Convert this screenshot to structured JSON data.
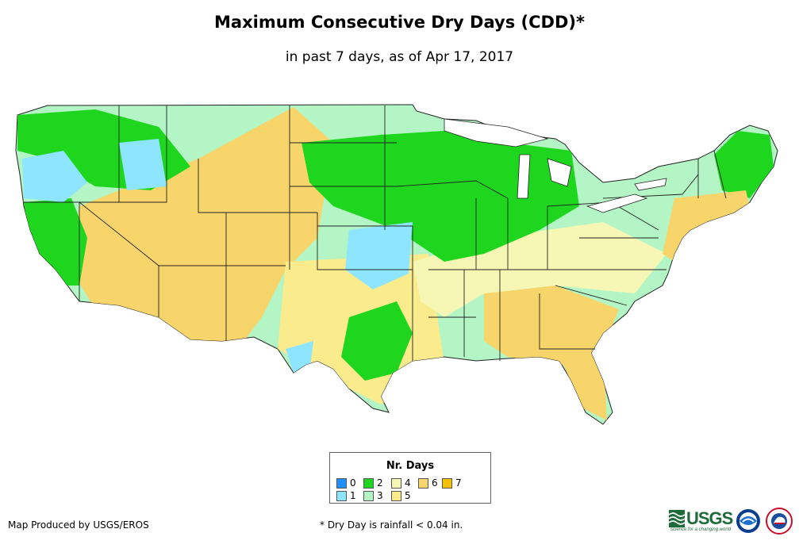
{
  "header": {
    "title": "Maximum Consecutive Dry Days (CDD)*",
    "subtitle": "in past 7 days, as of Apr 17, 2017"
  },
  "legend": {
    "title": "Nr. Days",
    "items": [
      {
        "label": "0",
        "color": "#1e90ff"
      },
      {
        "label": "1",
        "color": "#8ee5ff"
      },
      {
        "label": "2",
        "color": "#1fd61f"
      },
      {
        "label": "3",
        "color": "#b3f5c5"
      },
      {
        "label": "4",
        "color": "#f7f7b5"
      },
      {
        "label": "5",
        "color": "#faeb8c"
      },
      {
        "label": "6",
        "color": "#f7d56b"
      },
      {
        "label": "7",
        "color": "#f5c000"
      }
    ]
  },
  "map": {
    "region": "Contiguous United States",
    "dominant_values": {
      "southwest": "6",
      "northern_plains_great_lakes": "2",
      "pacific_northwest": "1",
      "southeast": "6",
      "northeast": "3"
    },
    "colors": {
      "state_border": "#222222",
      "water": "#ffffff"
    }
  },
  "footer": {
    "credit": "Map Produced by USGS/EROS",
    "note": "* Dry Day is rainfall < 0.04 in."
  },
  "logos": {
    "usgs_text": "USGS",
    "usgs_tagline": "science for a changing world",
    "noaa_icon": "noaa-logo-icon",
    "nws_icon": "nws-logo-icon"
  }
}
